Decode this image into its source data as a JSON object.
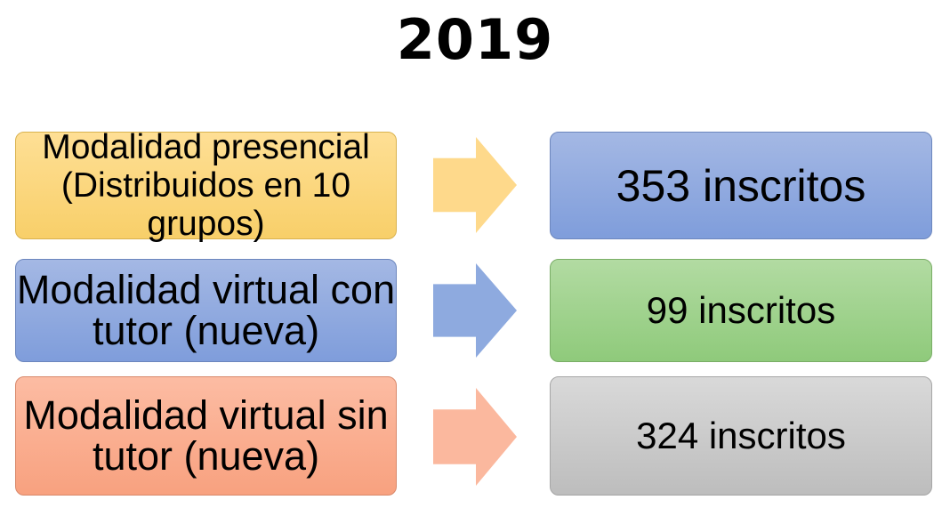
{
  "title": "2019",
  "rows": [
    {
      "modality": "Modalidad presencial (Distribuidos en 10 grupos)",
      "count": "353 inscritos",
      "left_colors": {
        "top": "#fedf95",
        "bottom": "#f8cf69",
        "border": "#d9b24f"
      },
      "arrow_color": "#fed98b",
      "right_colors": {
        "top": "#a4b8e4",
        "bottom": "#7f9ddb",
        "border": "#6c86bd"
      }
    },
    {
      "modality": "Modalidad virtual con tutor (nueva)",
      "count": "99 inscritos",
      "left_colors": {
        "top": "#a4b8e4",
        "bottom": "#7f9ddb",
        "border": "#6c86bd"
      },
      "arrow_color": "#8eaadf",
      "right_colors": {
        "top": "#b2dba2",
        "bottom": "#8fca7b",
        "border": "#79ad66"
      }
    },
    {
      "modality": "Modalidad virtual sin tutor (nueva)",
      "count": "324 inscritos",
      "left_colors": {
        "top": "#fcbca3",
        "bottom": "#f8a17f",
        "border": "#d8896b"
      },
      "arrow_color": "#fbb89e",
      "right_colors": {
        "top": "#d9d9d9",
        "bottom": "#bdbdbd",
        "border": "#a6a6a6"
      }
    }
  ]
}
